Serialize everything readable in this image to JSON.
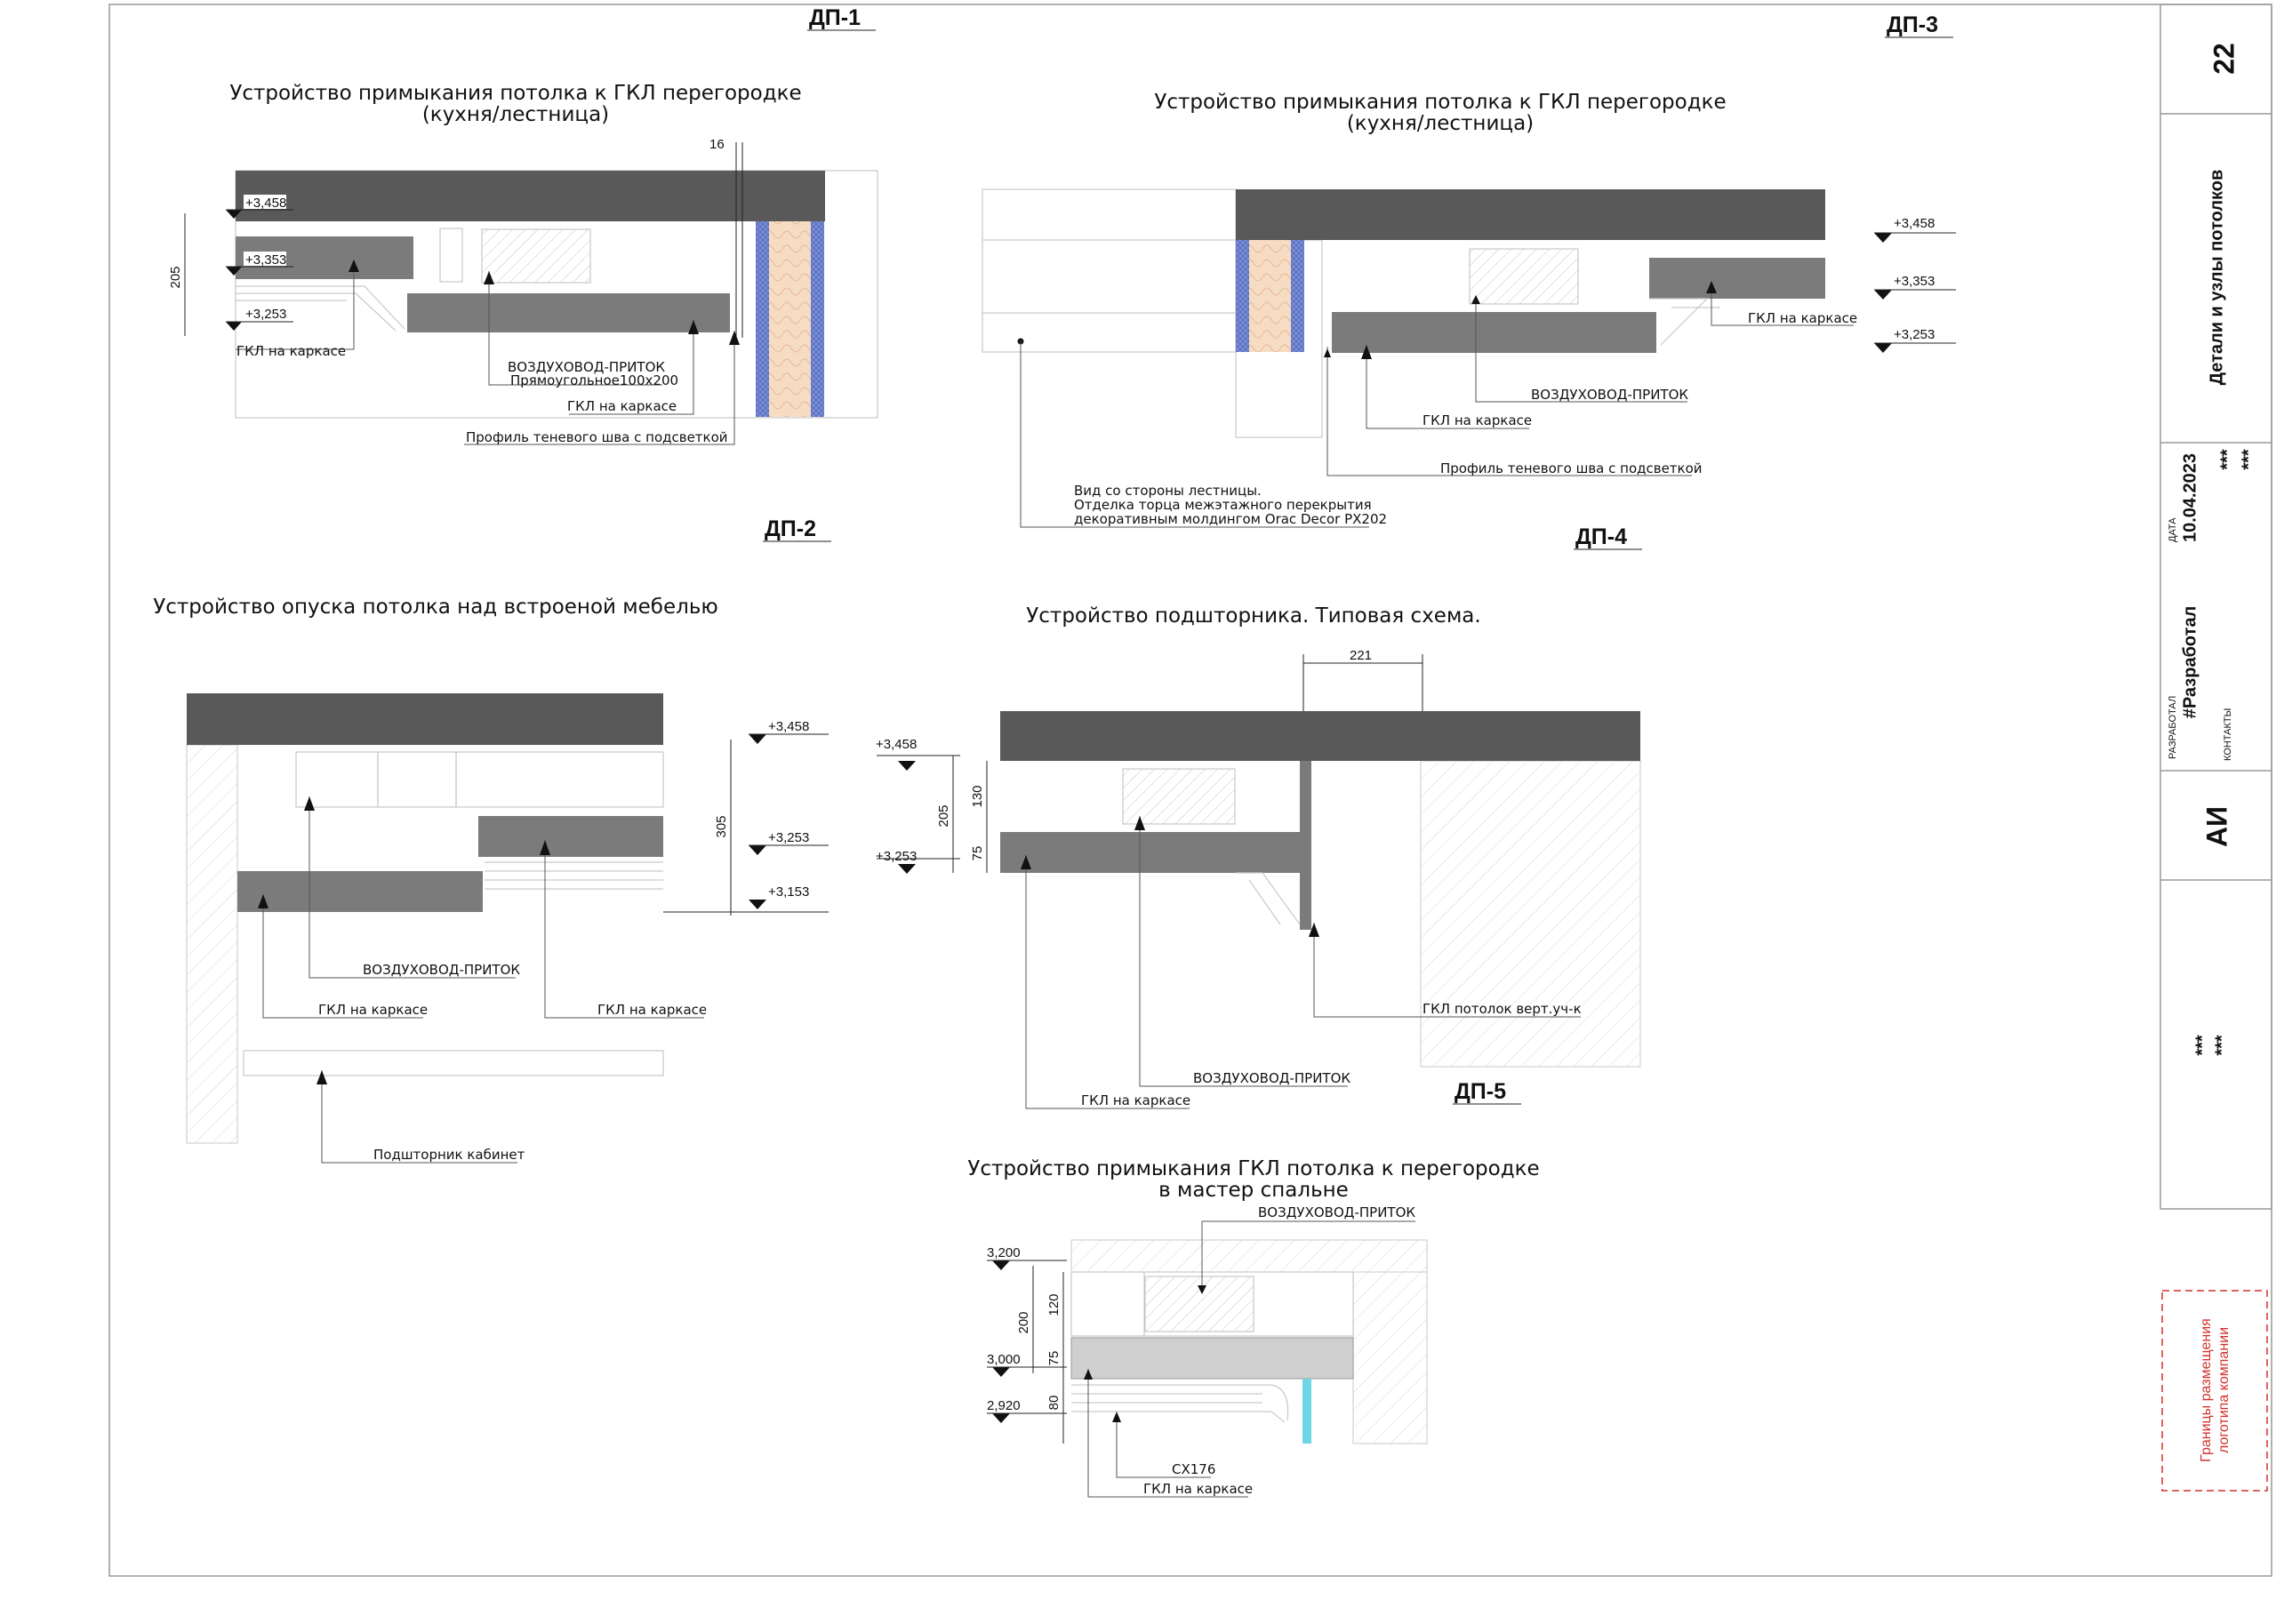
{
  "sheet": {
    "number": "22",
    "title": "Детали и узлы потолков",
    "stars": "***",
    "date_label": "ДАТА",
    "date": "10.04.2023",
    "developer_label": "РАЗРАБОТАЛ",
    "developer": "#Разработал",
    "contacts_label": "КОНТАКТЫ",
    "initials": "АИ",
    "logo_line1": "Границы размещения",
    "logo_line2": "логотипа компании"
  },
  "details": {
    "dp1": {
      "code": "ДП-1",
      "title1": "Устройство примыкания потолка к ГКЛ перегородке",
      "title2": "(кухня/лестница)",
      "levels": [
        "+3,458",
        "+3,353",
        "+3,253"
      ],
      "dims": [
        "16",
        "205"
      ],
      "notes": [
        "ГКЛ на каркасе",
        "ВОЗДУХОВОД-ПРИТОК",
        "Прямоугольное100х200",
        "ГКЛ на каркасе",
        "Профиль теневого шва с подсветкой"
      ]
    },
    "dp2": {
      "code": "ДП-2",
      "title": "Устройство опуска потолка над встроеной мебелью",
      "levels": [
        "+3,458",
        "+3,253",
        "+3,153"
      ],
      "dims": [
        "305"
      ],
      "notes": [
        "ВОЗДУХОВОД-ПРИТОК",
        "ГКЛ на каркасе",
        "ГКЛ на каркасе",
        "Подшторник кабинет"
      ]
    },
    "dp3": {
      "code": "ДП-3",
      "title1": "Устройство примыкания потолка к ГКЛ перегородке",
      "title2": "(кухня/лестница)",
      "levels": [
        "+3,458",
        "+3,353",
        "+3,253"
      ],
      "notes": [
        "ГКЛ на каркасе",
        "ВОЗДУХОВОД-ПРИТОК",
        "ГКЛ на каркасе",
        "Профиль теневого шва с подсветкой"
      ],
      "note_multi": [
        "Вид со стороны лестницы.",
        "Отделка торца межэтажного перекрытия",
        "декоративным молдингом Orac Decor PX202"
      ]
    },
    "dp4": {
      "code": "ДП-4",
      "title": "Устройство подшторника. Типовая схема.",
      "levels": [
        "+3,458",
        "+3,253"
      ],
      "dims": [
        "221",
        "205",
        "130",
        "75"
      ],
      "notes": [
        "ГКЛ потолок верт.уч-к",
        "ВОЗДУХОВОД-ПРИТОК",
        "ГКЛ на каркасе"
      ]
    },
    "dp5": {
      "code": "ДП-5",
      "title1": "Устройство примыкания ГКЛ потолка к перегородке",
      "title2": "в мастер спальне",
      "levels": [
        "3,200",
        "3,000",
        "2,920"
      ],
      "dims": [
        "120",
        "200",
        "75",
        "80"
      ],
      "notes": [
        "ВОЗДУХОВОД-ПРИТОК",
        "CX176",
        "ГКЛ на каркасе"
      ]
    }
  }
}
